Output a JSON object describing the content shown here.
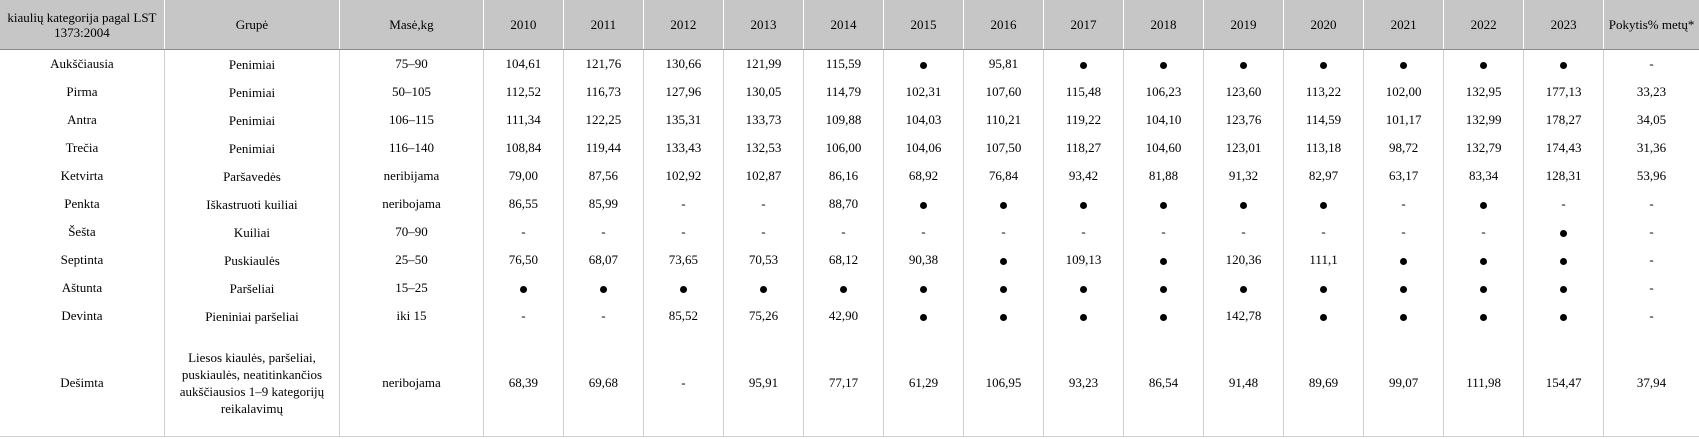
{
  "headers": {
    "category": "kiaulių kategorija pagal LST 1373:2004",
    "group": "Grupė",
    "mass": "Masė,kg",
    "years": [
      "2010",
      "2011",
      "2012",
      "2013",
      "2014",
      "2015",
      "2016",
      "2017",
      "2018",
      "2019",
      "2020",
      "2021",
      "2022",
      "2023"
    ],
    "change": "Pokytis% metų*"
  },
  "rows": [
    {
      "category": "Aukščiausia",
      "group": "Penimiai",
      "mass": "75–90",
      "values": [
        "104,61",
        "121,76",
        "130,66",
        "121,99",
        "115,59",
        "●",
        "95,81",
        "●",
        "●",
        "●",
        "●",
        "●",
        "●",
        "●"
      ],
      "change": "-"
    },
    {
      "category": "Pirma",
      "group": "Penimiai",
      "mass": "50–105",
      "values": [
        "112,52",
        "116,73",
        "127,96",
        "130,05",
        "114,79",
        "102,31",
        "107,60",
        "115,48",
        "106,23",
        "123,60",
        "113,22",
        "102,00",
        "132,95",
        "177,13"
      ],
      "change": "33,23"
    },
    {
      "category": "Antra",
      "group": "Penimiai",
      "mass": "106–115",
      "values": [
        "111,34",
        "122,25",
        "135,31",
        "133,73",
        "109,88",
        "104,03",
        "110,21",
        "119,22",
        "104,10",
        "123,76",
        "114,59",
        "101,17",
        "132,99",
        "178,27"
      ],
      "change": "34,05"
    },
    {
      "category": "Trečia",
      "group": "Penimiai",
      "mass": "116–140",
      "values": [
        "108,84",
        "119,44",
        "133,43",
        "132,53",
        "106,00",
        "104,06",
        "107,50",
        "118,27",
        "104,60",
        "123,01",
        "113,18",
        "98,72",
        "132,79",
        "174,43"
      ],
      "change": "31,36"
    },
    {
      "category": "Ketvirta",
      "group": "Paršavedės",
      "mass": "neribijama",
      "values": [
        "79,00",
        "87,56",
        "102,92",
        "102,87",
        "86,16",
        "68,92",
        "76,84",
        "93,42",
        "81,88",
        "91,32",
        "82,97",
        "63,17",
        "83,34",
        "128,31"
      ],
      "change": "53,96"
    },
    {
      "category": "Penkta",
      "group": "Iškastruoti kuiliai",
      "mass": "neribojama",
      "values": [
        "86,55",
        "85,99",
        "-",
        "-",
        "88,70",
        "●",
        "●",
        "●",
        "●",
        "●",
        "●",
        "-",
        "●",
        "-"
      ],
      "change": "-"
    },
    {
      "category": "Šešta",
      "group": "Kuiliai",
      "mass": "70–90",
      "values": [
        "-",
        "-",
        "-",
        "-",
        "-",
        "-",
        "-",
        "-",
        "-",
        "-",
        "-",
        "-",
        "-",
        "●"
      ],
      "change": "-"
    },
    {
      "category": "Septinta",
      "group": "Puskiaulės",
      "mass": "25–50",
      "values": [
        "76,50",
        "68,07",
        "73,65",
        "70,53",
        "68,12",
        "90,38",
        "●",
        "109,13",
        "●",
        "120,36",
        "111,1",
        "●",
        "●",
        "●"
      ],
      "change": "-"
    },
    {
      "category": "Aštunta",
      "group": "Paršeliai",
      "mass": "15–25",
      "values": [
        "●",
        "●",
        "●",
        "●",
        "●",
        "●",
        "●",
        "●",
        "●",
        "●",
        "●",
        "●",
        "●",
        "●"
      ],
      "change": "-"
    },
    {
      "category": "Devinta",
      "group": "Pieniniai paršeliai",
      "mass": "iki 15",
      "values": [
        "-",
        "-",
        "85,52",
        "75,26",
        "42,90",
        "●",
        "●",
        "●",
        "●",
        "142,78",
        "●",
        "●",
        "●",
        "●"
      ],
      "change": "-"
    },
    {
      "category": "Dešimta",
      "group": "Liesos kiaulės, paršeliai, puskiaulės, neatitinkančios aukščiausios 1–9 kategorijų reikalavimų",
      "mass": "neribojama",
      "values": [
        "68,39",
        "69,68",
        "-",
        "95,91",
        "77,17",
        "61,29",
        "106,95",
        "93,23",
        "86,54",
        "91,48",
        "89,69",
        "99,07",
        "111,98",
        "154,47"
      ],
      "change": "37,94"
    }
  ]
}
